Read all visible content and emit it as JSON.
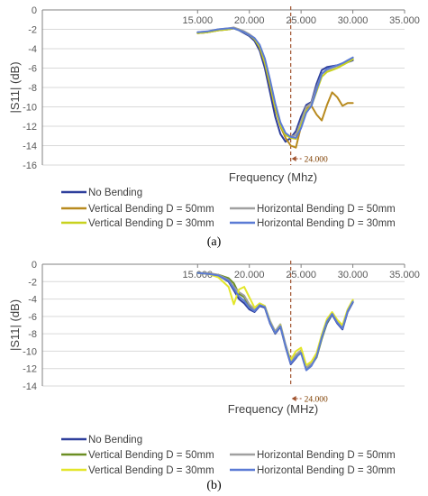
{
  "chart_data": [
    {
      "type": "line",
      "panel_label": "(a)",
      "xlabel": "Frequency (Mhz)",
      "ylabel": "|S11| (dB)",
      "xlim": [
        0,
        35000
      ],
      "ylim": [
        -16,
        0
      ],
      "x_ticks": [
        "15.000",
        "20.000",
        "25.000",
        "30.000",
        "35.000"
      ],
      "x_tick_values": [
        15000,
        20000,
        25000,
        30000,
        35000
      ],
      "y_ticks": [
        "0",
        "-2",
        "-4",
        "-6",
        "-8",
        "-10",
        "-12",
        "-14",
        "-16"
      ],
      "y_tick_values": [
        0,
        -2,
        -4,
        -6,
        -8,
        -10,
        -12,
        -14,
        -16
      ],
      "annotation": {
        "text": "24.000",
        "x": 24000
      },
      "series": [
        {
          "name": "No Bending",
          "color": "#2e3f9c",
          "x": [
            15000,
            16000,
            17000,
            18000,
            18500,
            19000,
            19500,
            20000,
            20500,
            21000,
            21500,
            22000,
            22500,
            23000,
            23500,
            24000,
            24500,
            25000,
            25500,
            26000,
            26500,
            27000,
            27500,
            28000,
            28500,
            29000,
            29500,
            30000
          ],
          "y": [
            -2.4,
            -2.3,
            -2.1,
            -2.0,
            -1.9,
            -2.1,
            -2.4,
            -2.7,
            -3.2,
            -4.2,
            -6.0,
            -8.5,
            -11.0,
            -12.8,
            -13.6,
            -13.2,
            -12.5,
            -11.0,
            -9.8,
            -9.5,
            -7.6,
            -6.2,
            -5.9,
            -5.8,
            -5.7,
            -5.6,
            -5.4,
            -5.2
          ]
        },
        {
          "name": "Vertical Bending D = 50mm",
          "color": "#b88a1e",
          "x": [
            15000,
            16000,
            17000,
            18000,
            18500,
            19000,
            19500,
            20000,
            20500,
            21000,
            21500,
            22000,
            22500,
            23000,
            23500,
            24000,
            24500,
            25000,
            25500,
            26000,
            26500,
            27000,
            27500,
            28000,
            28500,
            29000,
            29500,
            30000
          ],
          "y": [
            -2.4,
            -2.3,
            -2.1,
            -2.0,
            -1.9,
            -2.0,
            -2.3,
            -2.6,
            -3.0,
            -3.9,
            -5.5,
            -7.8,
            -10.2,
            -12.0,
            -13.2,
            -14.0,
            -14.2,
            -12.0,
            -10.2,
            -9.9,
            -10.8,
            -11.4,
            -9.8,
            -8.5,
            -9.0,
            -9.9,
            -9.6,
            -9.6
          ]
        },
        {
          "name": "Horizontal Bending D = 50mm",
          "color": "#a0a0a0",
          "x": [
            15000,
            16000,
            17000,
            18000,
            18500,
            19000,
            19500,
            20000,
            20500,
            21000,
            21500,
            22000,
            22500,
            23000,
            23500,
            24000,
            24500,
            25000,
            25500,
            26000,
            26500,
            27000,
            27500,
            28000,
            28500,
            29000,
            29500,
            30000
          ],
          "y": [
            -2.3,
            -2.2,
            -2.0,
            -1.9,
            -1.8,
            -2.0,
            -2.2,
            -2.5,
            -2.9,
            -3.7,
            -5.2,
            -7.5,
            -9.9,
            -11.8,
            -12.9,
            -13.1,
            -12.9,
            -11.5,
            -10.0,
            -9.6,
            -8.0,
            -6.6,
            -6.2,
            -6.0,
            -5.8,
            -5.6,
            -5.3,
            -5.0
          ]
        },
        {
          "name": "Vertical Bending D = 30mm",
          "color": "#c8d21e",
          "x": [
            15000,
            16000,
            17000,
            18000,
            18500,
            19000,
            19500,
            20000,
            20500,
            21000,
            21500,
            22000,
            22500,
            23000,
            23500,
            24000,
            24500,
            25000,
            25500,
            26000,
            26500,
            27000,
            27500,
            28000,
            28500,
            29000,
            29500,
            30000
          ],
          "y": [
            -2.4,
            -2.3,
            -2.1,
            -2.0,
            -1.9,
            -2.1,
            -2.3,
            -2.6,
            -3.0,
            -3.8,
            -5.4,
            -7.6,
            -10.0,
            -11.9,
            -12.9,
            -13.2,
            -13.3,
            -11.9,
            -10.4,
            -9.9,
            -8.4,
            -6.9,
            -6.4,
            -6.2,
            -6.0,
            -5.7,
            -5.4,
            -5.1
          ]
        },
        {
          "name": "Horizontal Bending D = 30mm",
          "color": "#5b7bd5",
          "x": [
            15000,
            16000,
            17000,
            18000,
            18500,
            19000,
            19500,
            20000,
            20500,
            21000,
            21500,
            22000,
            22500,
            23000,
            23500,
            24000,
            24500,
            25000,
            25500,
            26000,
            26500,
            27000,
            27500,
            28000,
            28500,
            29000,
            29500,
            30000
          ],
          "y": [
            -2.3,
            -2.2,
            -2.0,
            -1.9,
            -1.9,
            -2.1,
            -2.3,
            -2.6,
            -2.9,
            -3.6,
            -5.0,
            -7.2,
            -9.6,
            -11.6,
            -12.7,
            -13.1,
            -13.2,
            -12.2,
            -10.6,
            -9.9,
            -8.2,
            -6.6,
            -6.1,
            -5.9,
            -5.7,
            -5.5,
            -5.2,
            -4.9
          ]
        }
      ]
    },
    {
      "type": "line",
      "panel_label": "(b)",
      "xlabel": "Frequency (MHz)",
      "ylabel": "|S11| (dB)",
      "xlim": [
        0,
        35000
      ],
      "ylim": [
        -14,
        0
      ],
      "x_ticks": [
        "15.000",
        "20.000",
        "25.000",
        "30.000",
        "35.000"
      ],
      "x_tick_values": [
        15000,
        20000,
        25000,
        30000,
        35000
      ],
      "y_ticks": [
        "0",
        "-2",
        "-4",
        "-6",
        "-8",
        "-10",
        "-12",
        "-14"
      ],
      "y_tick_values": [
        0,
        -2,
        -4,
        -6,
        -8,
        -10,
        -12,
        -14
      ],
      "annotation": {
        "text": "24.000",
        "x": 24000
      },
      "series": [
        {
          "name": "No Bending",
          "color": "#2e3f9c",
          "x": [
            15000,
            16000,
            17000,
            18000,
            18500,
            19000,
            19500,
            20000,
            20500,
            21000,
            21500,
            22000,
            22500,
            23000,
            23500,
            24000,
            24500,
            25000,
            25500,
            26000,
            26500,
            27000,
            27500,
            28000,
            28500,
            29000,
            29500,
            30000
          ],
          "y": [
            -1.0,
            -1.1,
            -1.3,
            -2.0,
            -3.0,
            -4.0,
            -4.5,
            -5.2,
            -5.5,
            -4.8,
            -5.0,
            -6.8,
            -8.0,
            -7.2,
            -9.5,
            -11.5,
            -10.8,
            -10.0,
            -12.0,
            -11.5,
            -10.5,
            -8.5,
            -6.8,
            -5.8,
            -6.8,
            -7.5,
            -5.5,
            -4.4
          ]
        },
        {
          "name": "Vertical Bending D = 50mm",
          "color": "#6b8e23",
          "x": [
            15000,
            16000,
            17000,
            18000,
            18500,
            19000,
            19500,
            20000,
            20500,
            21000,
            21500,
            22000,
            22500,
            23000,
            23500,
            24000,
            24500,
            25000,
            25500,
            26000,
            26500,
            27000,
            27500,
            28000,
            28500,
            29000,
            29500,
            30000
          ],
          "y": [
            -1.0,
            -1.1,
            -1.2,
            -1.6,
            -2.2,
            -3.4,
            -3.8,
            -4.8,
            -5.3,
            -4.6,
            -4.9,
            -6.6,
            -7.8,
            -7.0,
            -9.3,
            -11.3,
            -10.6,
            -10.0,
            -12.0,
            -11.6,
            -10.7,
            -8.6,
            -6.7,
            -5.7,
            -6.6,
            -7.3,
            -5.4,
            -4.3
          ]
        },
        {
          "name": "Horizontal Bending D = 50mm",
          "color": "#a0a0a0",
          "x": [
            15000,
            16000,
            17000,
            18000,
            18500,
            19000,
            19500,
            20000,
            20500,
            21000,
            21500,
            22000,
            22500,
            23000,
            23500,
            24000,
            24500,
            25000,
            25500,
            26000,
            26500,
            27000,
            27500,
            28000,
            28500,
            29000,
            29500,
            30000
          ],
          "y": [
            -1.0,
            -1.0,
            -1.2,
            -1.8,
            -2.6,
            -3.2,
            -3.6,
            -4.6,
            -5.2,
            -4.5,
            -4.8,
            -6.5,
            -7.7,
            -6.9,
            -9.2,
            -11.1,
            -10.4,
            -9.9,
            -11.9,
            -11.4,
            -10.4,
            -8.3,
            -6.5,
            -5.6,
            -6.5,
            -7.2,
            -5.3,
            -4.2
          ]
        },
        {
          "name": "Vertical Bending D = 30mm",
          "color": "#e3e62a",
          "x": [
            15000,
            16000,
            17000,
            18000,
            18500,
            19000,
            19500,
            20000,
            20500,
            21000,
            21500,
            22000,
            22500,
            23000,
            23500,
            24000,
            24500,
            25000,
            25500,
            26000,
            26500,
            27000,
            27500,
            28000,
            28500,
            29000,
            29500,
            30000
          ],
          "y": [
            -1.0,
            -1.1,
            -1.5,
            -2.6,
            -4.6,
            -2.9,
            -2.6,
            -3.8,
            -5.0,
            -4.5,
            -4.8,
            -6.6,
            -7.9,
            -7.0,
            -9.4,
            -11.0,
            -10.0,
            -9.6,
            -11.6,
            -11.2,
            -10.2,
            -8.1,
            -6.3,
            -5.5,
            -6.4,
            -7.0,
            -5.2,
            -4.1
          ]
        },
        {
          "name": "Horizontal Bending D = 30mm",
          "color": "#5b7bd5",
          "x": [
            15000,
            16000,
            17000,
            18000,
            18500,
            19000,
            19500,
            20000,
            20500,
            21000,
            21500,
            22000,
            22500,
            23000,
            23500,
            24000,
            24500,
            25000,
            25500,
            26000,
            26500,
            27000,
            27500,
            28000,
            28500,
            29000,
            29500,
            30000
          ],
          "y": [
            -1.0,
            -1.1,
            -1.3,
            -1.9,
            -2.8,
            -3.7,
            -4.2,
            -5.0,
            -5.4,
            -4.7,
            -4.9,
            -6.7,
            -7.9,
            -7.1,
            -9.4,
            -11.4,
            -10.7,
            -10.2,
            -12.2,
            -11.7,
            -10.6,
            -8.4,
            -6.6,
            -5.7,
            -6.7,
            -7.4,
            -5.4,
            -4.3
          ]
        }
      ]
    }
  ],
  "legend_a": [
    {
      "label": "No Bending",
      "color": "#2e3f9c"
    },
    {
      "label": "Vertical Bending D = 50mm",
      "color": "#b88a1e"
    },
    {
      "label": "Horizontal Bending D = 50mm",
      "color": "#a0a0a0"
    },
    {
      "label": "Vertical Bending D = 30mm",
      "color": "#c8d21e"
    },
    {
      "label": "Horizontal Bending D = 30mm",
      "color": "#5b7bd5"
    }
  ],
  "legend_b": [
    {
      "label": "No Bending",
      "color": "#2e3f9c"
    },
    {
      "label": "Vertical Bending D = 50mm",
      "color": "#6b8e23"
    },
    {
      "label": "Horizontal Bending D = 50mm",
      "color": "#a0a0a0"
    },
    {
      "label": "Vertical Bending D = 30mm",
      "color": "#e3e62a"
    },
    {
      "label": "Horizontal Bending D = 30mm",
      "color": "#5b7bd5"
    }
  ],
  "colors": {
    "annotation": "#a0522d",
    "axis": "#808080",
    "grid": "#d9d9d9"
  }
}
